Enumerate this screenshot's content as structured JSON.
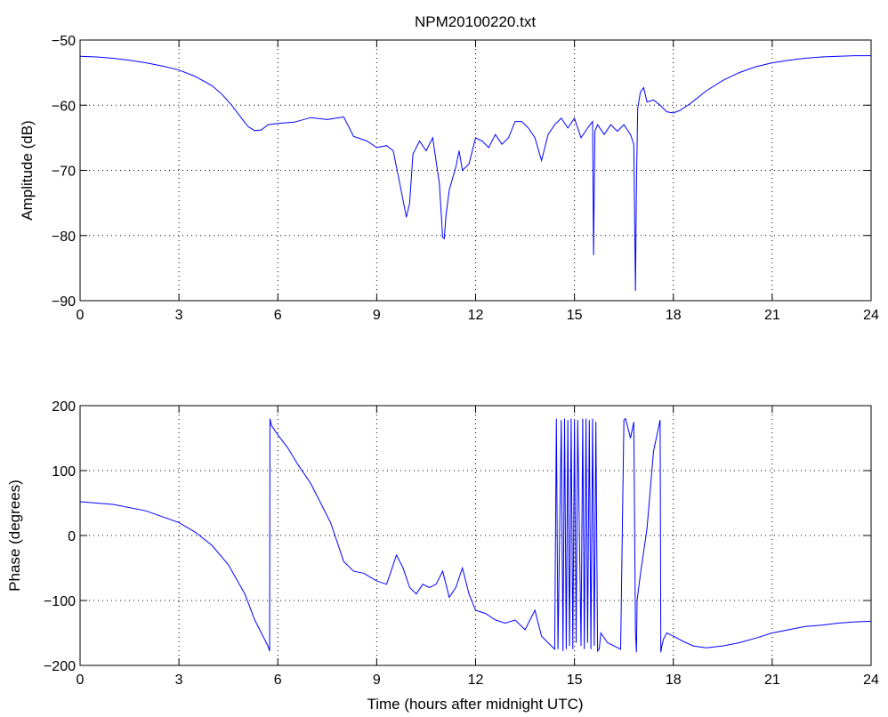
{
  "chart_data": [
    {
      "type": "line",
      "title": "NPM20100220.txt",
      "xlabel": "",
      "ylabel": "Amplitude (dB)",
      "xlim": [
        0,
        24
      ],
      "ylim": [
        -90,
        -50
      ],
      "xticks": [
        "0",
        "3",
        "6",
        "9",
        "12",
        "15",
        "18",
        "21",
        "24"
      ],
      "yticks": [
        "−50",
        "−60",
        "−70",
        "−80",
        "−90"
      ],
      "grid": true,
      "series_color": "#0000ff",
      "series": [
        {
          "x": [
            0,
            0.5,
            1,
            1.5,
            2,
            2.5,
            3,
            3.5,
            4,
            4.3,
            4.6,
            4.9,
            5.1,
            5.3,
            5.5,
            5.7,
            6.0,
            6.5,
            7.0,
            7.5,
            8.0,
            8.3,
            8.7,
            9.0,
            9.3,
            9.5,
            9.7,
            9.9,
            10.0,
            10.1,
            10.3,
            10.5,
            10.7,
            10.9,
            11.0,
            11.05,
            11.1,
            11.2,
            11.4,
            11.5,
            11.6,
            11.8,
            12.0,
            12.2,
            12.4,
            12.6,
            12.8,
            13.0,
            13.2,
            13.4,
            13.6,
            13.8,
            14.0,
            14.2,
            14.4,
            14.6,
            14.8,
            15.0,
            15.2,
            15.4,
            15.55,
            15.58,
            15.62,
            15.7,
            15.9,
            16.1,
            16.3,
            16.5,
            16.7,
            16.8,
            16.85,
            16.88,
            16.92,
            17.0,
            17.1,
            17.2,
            17.4,
            17.6,
            17.8,
            18.0,
            18.2,
            18.5,
            19.0,
            19.5,
            20.0,
            20.5,
            21.0,
            21.5,
            22.0,
            22.5,
            23.0,
            23.5,
            24.0
          ],
          "y": [
            -52.5,
            -52.6,
            -52.8,
            -53.1,
            -53.5,
            -54.0,
            -54.6,
            -55.6,
            -57.0,
            -58.3,
            -60.0,
            -62.0,
            -63.3,
            -63.9,
            -63.8,
            -63.0,
            -62.8,
            -62.6,
            -61.9,
            -62.2,
            -61.8,
            -64.8,
            -65.5,
            -66.5,
            -66.2,
            -67.0,
            -72.0,
            -77.2,
            -75.0,
            -67.5,
            -65.5,
            -67.0,
            -65.0,
            -72.0,
            -80.3,
            -80.5,
            -77.0,
            -73.0,
            -69.5,
            -67.0,
            -70.0,
            -69.0,
            -65.0,
            -65.5,
            -66.5,
            -64.5,
            -66.0,
            -65.0,
            -62.5,
            -62.5,
            -63.5,
            -65.0,
            -68.5,
            -64.5,
            -63.0,
            -62.0,
            -63.5,
            -62.0,
            -65.0,
            -63.5,
            -62.5,
            -83.0,
            -64.0,
            -63.0,
            -64.5,
            -63.0,
            -64.0,
            -63.0,
            -64.5,
            -66.0,
            -88.5,
            -72.0,
            -60.5,
            -58.0,
            -57.3,
            -59.5,
            -59.2,
            -60.0,
            -61.0,
            -61.2,
            -60.8,
            -59.8,
            -57.8,
            -56.2,
            -55.0,
            -54.1,
            -53.5,
            -53.1,
            -52.8,
            -52.6,
            -52.5,
            -52.4,
            -52.4
          ]
        }
      ]
    },
    {
      "type": "line",
      "title": "",
      "xlabel": "Time (hours after midnight UTC)",
      "ylabel": "Phase (degrees)",
      "xlim": [
        0,
        24
      ],
      "ylim": [
        -200,
        200
      ],
      "xticks": [
        "0",
        "3",
        "6",
        "9",
        "12",
        "15",
        "18",
        "21",
        "24"
      ],
      "yticks": [
        "200",
        "100",
        "0",
        "−100",
        "−200"
      ],
      "grid": true,
      "series_color": "#0000ff",
      "series": [
        {
          "x": [
            0,
            1,
            2,
            3,
            3.5,
            4,
            4.5,
            5,
            5.3,
            5.5,
            5.7,
            5.75,
            5.76,
            5.8,
            6.0,
            6.3,
            6.6,
            7.0,
            7.3,
            7.6,
            8.0,
            8.3,
            8.6,
            9.0,
            9.3,
            9.6,
            9.8,
            10.0,
            10.2,
            10.4,
            10.6,
            10.8,
            11.0,
            11.2,
            11.4,
            11.6,
            11.8,
            12.0,
            12.3,
            12.6,
            12.9,
            13.2,
            13.5,
            13.8,
            14.0,
            14.2,
            14.4,
            14.45,
            14.5,
            14.6,
            14.65,
            14.7,
            14.75,
            14.8,
            14.85,
            14.9,
            14.95,
            15.0,
            15.05,
            15.1,
            15.2,
            15.25,
            15.3,
            15.35,
            15.4,
            15.45,
            15.5,
            15.55,
            15.6,
            15.65,
            15.7,
            15.75,
            15.8,
            16.0,
            16.2,
            16.4,
            16.5,
            16.55,
            16.6,
            16.7,
            16.8,
            16.85,
            16.88,
            16.9,
            17.0,
            17.2,
            17.4,
            17.6,
            17.62,
            17.65,
            17.7,
            17.8,
            18.0,
            18.3,
            18.6,
            19.0,
            19.5,
            20.0,
            20.5,
            21.0,
            21.5,
            22.0,
            22.5,
            23.0,
            23.5,
            24.0
          ],
          "y": [
            52,
            48,
            38,
            20,
            5,
            -15,
            -45,
            -90,
            -130,
            -150,
            -170,
            -178,
            180,
            170,
            155,
            135,
            110,
            80,
            50,
            20,
            -40,
            -55,
            -58,
            -70,
            -75,
            -30,
            -50,
            -80,
            -90,
            -75,
            -80,
            -75,
            -55,
            -95,
            -80,
            -50,
            -90,
            -115,
            -120,
            -130,
            -135,
            -130,
            -145,
            -115,
            -155,
            -165,
            -175,
            180,
            -175,
            178,
            -178,
            180,
            -175,
            178,
            -170,
            180,
            -175,
            178,
            -165,
            178,
            -170,
            180,
            -175,
            180,
            -165,
            178,
            -175,
            180,
            -170,
            175,
            -178,
            -175,
            -150,
            -165,
            -170,
            -175,
            178,
            180,
            170,
            150,
            175,
            -150,
            -180,
            -100,
            -60,
            10,
            130,
            178,
            -180,
            -170,
            -160,
            -150,
            -155,
            -163,
            -170,
            -173,
            -170,
            -165,
            -158,
            -150,
            -145,
            -140,
            -138,
            -135,
            -133,
            -132
          ]
        }
      ]
    }
  ]
}
